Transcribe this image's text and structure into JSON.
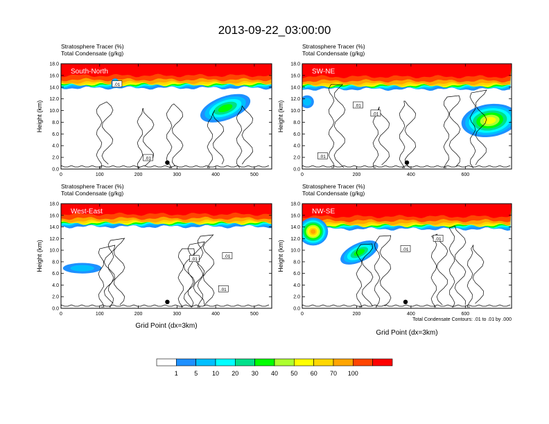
{
  "figure": {
    "title": "2013-09-22_03:00:00",
    "xlabel": "Grid Point (dx=3km)",
    "ylabel": "Height (km)",
    "contour_note": "Total Condensate Contours: .01 to .01 by .000",
    "contour_label": ".01"
  },
  "colors": {
    "levels": [
      "#ffffff",
      "#1e90ff",
      "#00bfff",
      "#00ffff",
      "#00e08a",
      "#00ff00",
      "#adff2f",
      "#ffff00",
      "#ffd700",
      "#ffa500",
      "#ff4500",
      "#ff0000"
    ]
  },
  "chart_data": [
    {
      "type": "heatmap",
      "name": "South-North",
      "line1": "Stratosphere Tracer   (%)",
      "line2": "Total Condensate   (g/kg)",
      "xlim": [
        0,
        545
      ],
      "ylim": [
        0,
        18
      ],
      "xticks": [
        "0",
        "100",
        "200",
        "300",
        "400",
        "500"
      ],
      "xtick_values": [
        0,
        100,
        200,
        300,
        400,
        500
      ],
      "yticks": [
        "0.0",
        "2.0",
        "4.0",
        "6.0",
        "8.0",
        "10.0",
        "12.0",
        "14.0",
        "16.0",
        "18.0"
      ],
      "ytick_values": [
        0,
        2,
        4,
        6,
        8,
        10,
        12,
        14,
        16,
        18
      ],
      "tropopause_km": 14.8,
      "tracer_blobs": [
        {
          "x": 425,
          "y": 10.4,
          "rx": 68,
          "ry": 2.0,
          "rot": -20,
          "peak": 5
        },
        {
          "x": 140,
          "y": 14.7,
          "rx": 10,
          "ry": 0.8,
          "rot": 0,
          "peak": 5
        }
      ],
      "contour_labels": [
        {
          "x": 145,
          "y": 14.5
        },
        {
          "x": 225,
          "y": 1.9
        }
      ],
      "marker": {
        "x": 275,
        "y": 1.1
      }
    },
    {
      "type": "heatmap",
      "name": "SW-NE",
      "line1": "Stratosphere Tracer   (%)",
      "line2": "Total Condensate   (g/kg)",
      "xlim": [
        0,
        770
      ],
      "ylim": [
        0,
        18
      ],
      "xticks": [
        "0",
        "200",
        "400",
        "600"
      ],
      "xtick_values": [
        0,
        200,
        400,
        600
      ],
      "yticks": [
        "0.0",
        "2.0",
        "4.0",
        "6.0",
        "8.0",
        "10.0",
        "12.0",
        "14.0",
        "16.0",
        "18.0"
      ],
      "ytick_values": [
        0,
        2,
        4,
        6,
        8,
        10,
        12,
        14,
        16,
        18
      ],
      "tropopause_km": 14.6,
      "tracer_blobs": [
        {
          "x": 690,
          "y": 8.3,
          "rx": 105,
          "ry": 2.8,
          "rot": -8,
          "peak": 7
        },
        {
          "x": 18,
          "y": 11.5,
          "rx": 25,
          "ry": 1.1,
          "rot": 0,
          "peak": 2
        }
      ],
      "contour_labels": [
        {
          "x": 205,
          "y": 10.9
        },
        {
          "x": 270,
          "y": 9.5
        },
        {
          "x": 75,
          "y": 2.2
        }
      ],
      "marker": {
        "x": 385,
        "y": 1.1
      }
    },
    {
      "type": "heatmap",
      "name": "West-East",
      "line1": "Stratosphere Tracer   (%)",
      "line2": "Total Condensate   (g/kg)",
      "xlim": [
        0,
        545
      ],
      "ylim": [
        0,
        18
      ],
      "xticks": [
        "0",
        "100",
        "200",
        "300",
        "400",
        "500"
      ],
      "xtick_values": [
        0,
        100,
        200,
        300,
        400,
        500
      ],
      "yticks": [
        "0.0",
        "2.0",
        "4.0",
        "6.0",
        "8.0",
        "10.0",
        "12.0",
        "14.0",
        "16.0",
        "18.0"
      ],
      "ytick_values": [
        0,
        2,
        4,
        6,
        8,
        10,
        12,
        14,
        16,
        18
      ],
      "tropopause_km": 15.0,
      "tracer_blobs": [
        {
          "x": 55,
          "y": 6.9,
          "rx": 50,
          "ry": 0.9,
          "rot": 0,
          "peak": 2
        }
      ],
      "contour_labels": [
        {
          "x": 345,
          "y": 8.5
        },
        {
          "x": 430,
          "y": 9.0
        },
        {
          "x": 420,
          "y": 3.3
        }
      ],
      "marker": {
        "x": 275,
        "y": 1.1
      }
    },
    {
      "type": "heatmap",
      "name": "NW-SE",
      "line1": "Stratosphere Tracer   (%)",
      "line2": "Total Condensate   (g/kg)",
      "xlim": [
        0,
        770
      ],
      "ylim": [
        0,
        18
      ],
      "xticks": [
        "0",
        "200",
        "400",
        "600"
      ],
      "xtick_values": [
        0,
        200,
        400,
        600
      ],
      "yticks": [
        "0.0",
        "2.0",
        "4.0",
        "6.0",
        "8.0",
        "10.0",
        "12.0",
        "14.0",
        "16.0",
        "18.0"
      ],
      "ytick_values": [
        0,
        2,
        4,
        6,
        8,
        10,
        12,
        14,
        16,
        18
      ],
      "tropopause_km": 14.6,
      "tracer_blobs": [
        {
          "x": 210,
          "y": 9.6,
          "rx": 75,
          "ry": 1.6,
          "rot": -25,
          "peak": 5
        },
        {
          "x": 40,
          "y": 13.2,
          "rx": 55,
          "ry": 2.4,
          "rot": 0,
          "peak": 9
        }
      ],
      "contour_labels": [
        {
          "x": 380,
          "y": 10.2
        },
        {
          "x": 500,
          "y": 12.0
        }
      ],
      "marker": {
        "x": 380,
        "y": 1.1
      }
    }
  ],
  "colorbar": {
    "labels": [
      "1",
      "5",
      "10",
      "20",
      "30",
      "40",
      "50",
      "60",
      "70",
      "100"
    ]
  }
}
